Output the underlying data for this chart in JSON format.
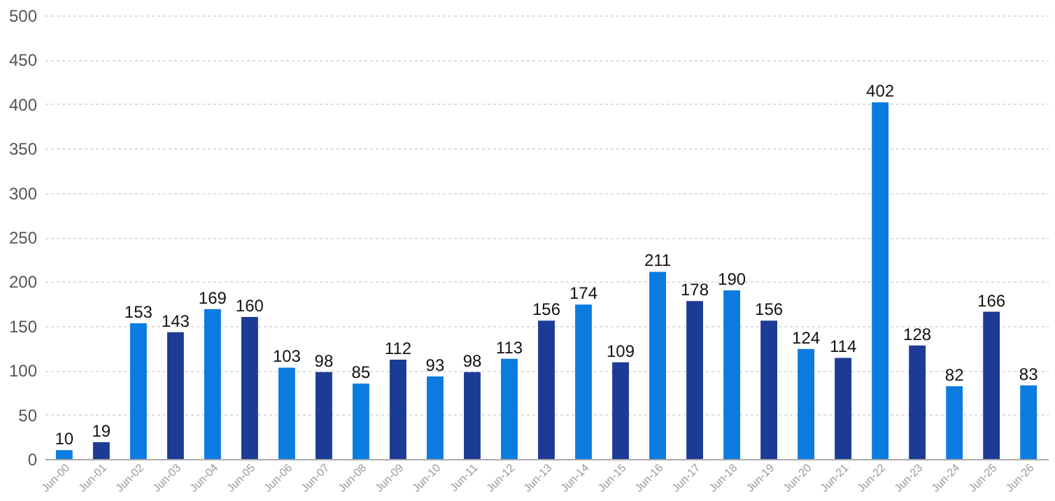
{
  "chart_data": {
    "type": "bar",
    "categories": [
      "Jun-00",
      "Jun-01",
      "Jun-02",
      "Jun-03",
      "Jun-04",
      "Jun-05",
      "Jun-06",
      "Jun-07",
      "Jun-08",
      "Jun-09",
      "Jun-10",
      "Jun-11",
      "Jun-12",
      "Jun-13",
      "Jun-14",
      "Jun-15",
      "Jun-16",
      "Jun-17",
      "Jun-18",
      "Jun-19",
      "Jun-20",
      "Jun-21",
      "Jun-22",
      "Jun-23",
      "Jun-24",
      "Jun-25",
      "Jun-26"
    ],
    "values": [
      10,
      19,
      153,
      143,
      169,
      160,
      103,
      98,
      85,
      112,
      93,
      98,
      113,
      156,
      174,
      109,
      211,
      178,
      190,
      156,
      124,
      114,
      402,
      128,
      82,
      166,
      83
    ],
    "colors": [
      "#0b7be0",
      "#1c3b96",
      "#0b7be0",
      "#1c3b96",
      "#0b7be0",
      "#1c3b96",
      "#0b7be0",
      "#1c3b96",
      "#0b7be0",
      "#1c3b96",
      "#0b7be0",
      "#1c3b96",
      "#0b7be0",
      "#1c3b96",
      "#0b7be0",
      "#1c3b96",
      "#0b7be0",
      "#1c3b96",
      "#0b7be0",
      "#1c3b96",
      "#0b7be0",
      "#1c3b96",
      "#0b7be0",
      "#1c3b96",
      "#0b7be0",
      "#1c3b96",
      "#0b7be0"
    ],
    "ylim": [
      0,
      500
    ],
    "yticks": [
      0,
      50,
      100,
      150,
      200,
      250,
      300,
      350,
      400,
      450,
      500
    ],
    "grid": "y",
    "data_labels": true
  }
}
